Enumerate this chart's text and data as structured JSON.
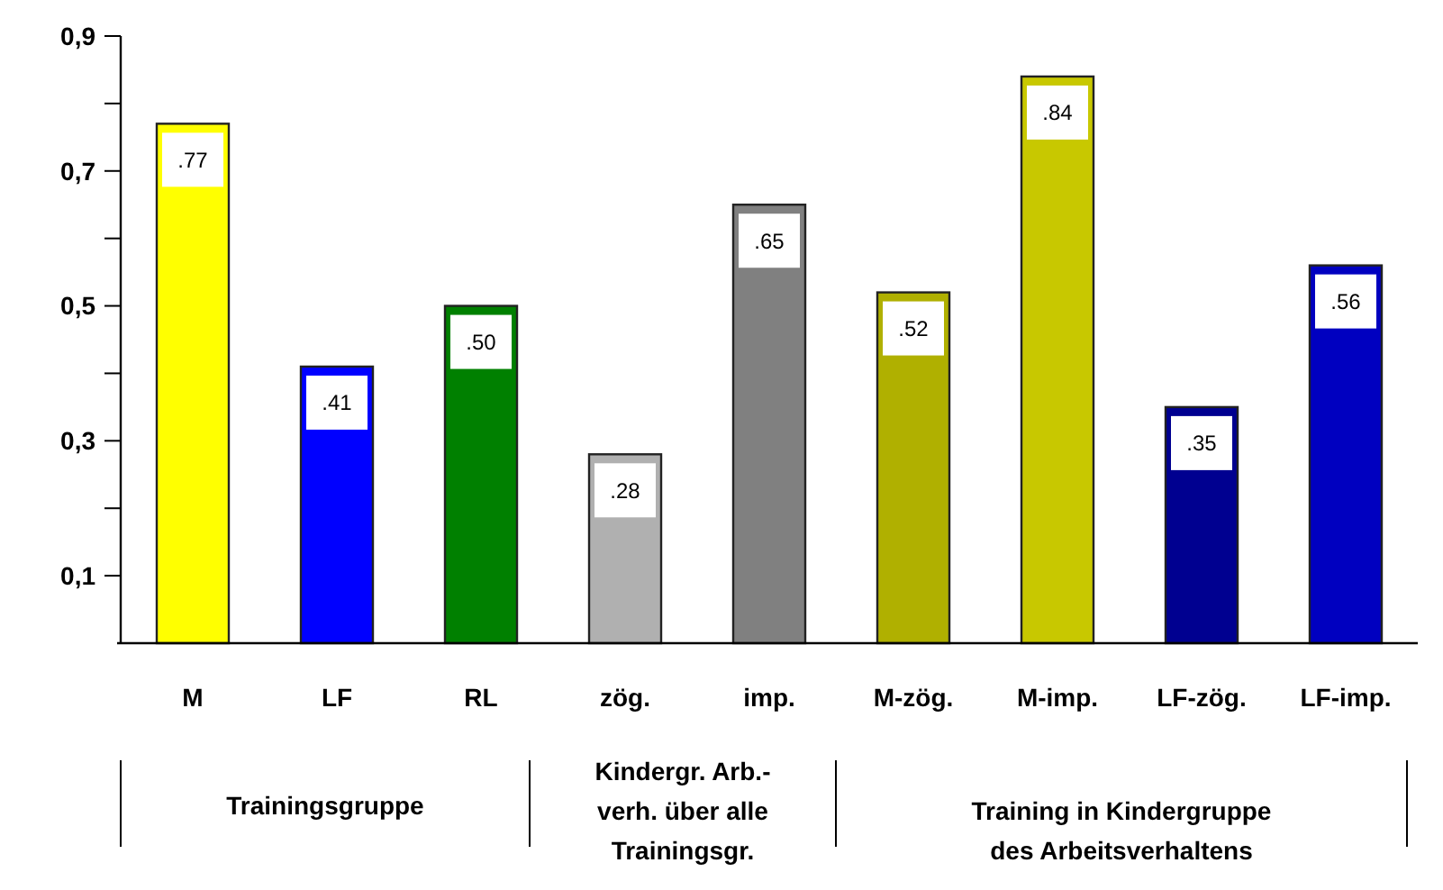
{
  "chart_data": {
    "type": "bar",
    "categories": [
      "M",
      "LF",
      "RL",
      "zög.",
      "imp.",
      "M-zög.",
      "M-imp.",
      "LF-zög.",
      "LF-imp."
    ],
    "values": [
      0.77,
      0.41,
      0.5,
      0.28,
      0.65,
      0.52,
      0.84,
      0.35,
      0.56
    ],
    "colors": [
      "#ffff00",
      "#0000ff",
      "#008000",
      "#b0b0b0",
      "#808080",
      "#b0b000",
      "#c8c800",
      "#000090",
      "#0000c0"
    ],
    "value_labels": [
      ".77",
      ".41",
      ".50",
      ".28",
      ".65",
      ".52",
      ".84",
      ".35",
      ".56"
    ],
    "ylim": [
      0,
      0.9
    ],
    "yticks": [
      {
        "value": 0.1,
        "label": "0,1"
      },
      {
        "value": 0.2,
        "label": null
      },
      {
        "value": 0.3,
        "label": "0,3"
      },
      {
        "value": 0.4,
        "label": null
      },
      {
        "value": 0.5,
        "label": "0,5"
      },
      {
        "value": 0.6,
        "label": null
      },
      {
        "value": 0.7,
        "label": "0,7"
      },
      {
        "value": 0.8,
        "label": null
      },
      {
        "value": 0.9,
        "label": "0,9"
      }
    ],
    "grid": false,
    "annotations": [
      "Trainingsgruppe",
      "Kindergr. Arb.-verh. über alle Trainingsgr.",
      "Training in Kindergruppe des Arbeitsverhaltens"
    ]
  }
}
